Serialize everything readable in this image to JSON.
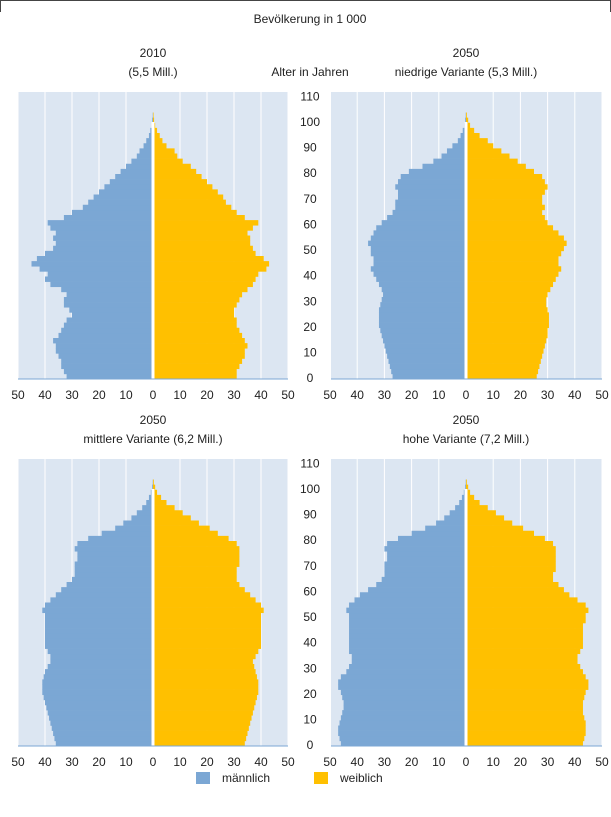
{
  "title": "Bevölkerung in 1 000",
  "chart_data": [
    {
      "type": "pyramid",
      "title": "2010",
      "subtitle": "(5,5 Mill.)",
      "categories": [
        0,
        2,
        4,
        6,
        8,
        10,
        12,
        14,
        16,
        18,
        20,
        22,
        24,
        26,
        28,
        30,
        32,
        34,
        36,
        38,
        40,
        42,
        44,
        46,
        48,
        50,
        52,
        54,
        56,
        58,
        60,
        62,
        64,
        66,
        68,
        70,
        72,
        74,
        76,
        78,
        80,
        82,
        84,
        86,
        88,
        90,
        92,
        94,
        96,
        98,
        100,
        102,
        104
      ],
      "ylim": [
        0,
        112
      ],
      "xlim": [
        0,
        50
      ],
      "xticks": [
        0,
        10,
        20,
        30,
        40,
        50
      ],
      "grid": true,
      "series": [
        {
          "name": "männlich",
          "color": "#7ba7d4",
          "side": "left",
          "values": [
            32,
            33,
            34,
            34,
            35,
            36,
            36,
            37,
            35,
            34,
            33,
            32,
            30,
            31,
            33,
            33,
            32,
            34,
            38,
            40,
            39,
            42,
            45,
            43,
            40,
            37,
            36,
            37,
            36,
            38,
            39,
            33,
            30,
            26,
            24,
            22,
            20,
            18,
            16,
            14,
            12,
            10,
            8,
            6,
            5,
            3.5,
            2.5,
            1.5,
            1,
            0.5,
            0.3,
            0.1,
            0
          ]
        },
        {
          "name": "weiblich",
          "color": "#ffc000",
          "side": "right",
          "values": [
            31,
            31,
            32,
            33,
            34,
            34,
            35,
            34,
            33,
            32,
            31,
            31,
            30,
            30,
            31,
            32,
            33,
            35,
            37,
            38,
            39,
            42,
            43,
            41,
            38,
            37,
            36,
            36,
            35,
            37,
            39,
            34,
            31,
            29,
            27,
            26,
            24,
            22,
            20,
            18,
            16,
            14,
            11,
            9,
            8,
            5,
            3.5,
            2.5,
            1.5,
            0.8,
            0.4,
            0.2,
            0
          ]
        }
      ]
    },
    {
      "type": "pyramid",
      "title": "2050",
      "subtitle": "niedrige Variante (5,3 Mill.)",
      "ylabel": "Alter in Jahren",
      "categories": [
        0,
        2,
        4,
        6,
        8,
        10,
        12,
        14,
        16,
        18,
        20,
        22,
        24,
        26,
        28,
        30,
        32,
        34,
        36,
        38,
        40,
        42,
        44,
        46,
        48,
        50,
        52,
        54,
        56,
        58,
        60,
        62,
        64,
        66,
        68,
        70,
        72,
        74,
        76,
        78,
        80,
        82,
        84,
        86,
        88,
        90,
        92,
        94,
        96,
        98,
        100,
        102,
        104
      ],
      "ylim": [
        0,
        112
      ],
      "yticks": [
        0,
        10,
        20,
        30,
        40,
        50,
        60,
        70,
        80,
        90,
        100,
        110
      ],
      "xlim": [
        0,
        50
      ],
      "xticks": [
        0,
        10,
        20,
        30,
        40,
        50
      ],
      "grid": true,
      "series": [
        {
          "name": "männlich",
          "color": "#7ba7d4",
          "side": "left",
          "values": [
            27,
            27.5,
            28,
            28.5,
            29,
            29.5,
            30,
            30.5,
            31,
            31.5,
            32,
            32,
            32,
            32,
            31.5,
            31,
            30.5,
            31,
            32,
            33,
            34,
            35,
            34,
            34,
            35,
            35,
            36,
            35,
            34,
            33,
            31,
            29,
            27,
            26,
            26,
            25,
            25,
            26,
            25,
            24,
            21,
            16,
            12,
            9,
            7,
            5,
            3,
            2,
            1.2,
            0.6,
            0.3,
            0.1,
            0
          ]
        },
        {
          "name": "weiblich",
          "color": "#ffc000",
          "side": "right",
          "values": [
            26,
            26.5,
            27,
            27.5,
            28,
            28.5,
            29,
            29.5,
            30,
            30,
            30.5,
            30.5,
            30.5,
            30,
            29.5,
            29.5,
            30,
            31,
            32,
            33,
            34,
            35,
            34,
            34,
            35,
            36,
            37,
            36,
            34,
            32,
            30,
            29,
            28,
            29,
            28,
            28,
            29,
            30,
            29,
            28,
            25,
            22,
            19,
            16,
            13,
            10,
            8,
            5,
            3,
            1.5,
            0.8,
            0.3,
            0
          ]
        }
      ]
    },
    {
      "type": "pyramid",
      "title": "2050",
      "subtitle": "mittlere Variante (6,2 Mill.)",
      "categories": [
        0,
        2,
        4,
        6,
        8,
        10,
        12,
        14,
        16,
        18,
        20,
        22,
        24,
        26,
        28,
        30,
        32,
        34,
        36,
        38,
        40,
        42,
        44,
        46,
        48,
        50,
        52,
        54,
        56,
        58,
        60,
        62,
        64,
        66,
        68,
        70,
        72,
        74,
        76,
        78,
        80,
        82,
        84,
        86,
        88,
        90,
        92,
        94,
        96,
        98,
        100,
        102,
        104
      ],
      "ylim": [
        0,
        112
      ],
      "xlim": [
        0,
        50
      ],
      "xticks": [
        0,
        10,
        20,
        30,
        40,
        50
      ],
      "grid": true,
      "series": [
        {
          "name": "männlich",
          "color": "#7ba7d4",
          "side": "left",
          "values": [
            36,
            36.5,
            37,
            37.5,
            38,
            38.5,
            39,
            39.5,
            40,
            40.5,
            41,
            41,
            41,
            40.5,
            40,
            39,
            38,
            38,
            39,
            40,
            40,
            40,
            40,
            40,
            40,
            40,
            41,
            40,
            38,
            36,
            34,
            32,
            30,
            29,
            29,
            29,
            28,
            28,
            29,
            28,
            24,
            19,
            14,
            11,
            8,
            6,
            4,
            2.5,
            1.5,
            0.8,
            0.3,
            0.1,
            0
          ]
        },
        {
          "name": "weiblich",
          "color": "#ffc000",
          "side": "right",
          "values": [
            34,
            34.5,
            35,
            35.5,
            36,
            36.5,
            37,
            37.5,
            38,
            38.5,
            39,
            39,
            39,
            38.5,
            38,
            37.5,
            37,
            38,
            39,
            40,
            40,
            40,
            40,
            40,
            40,
            40,
            41,
            40,
            38,
            36,
            34,
            32,
            31,
            31,
            31,
            32,
            32,
            32,
            32,
            31,
            28,
            24,
            21,
            17,
            14,
            11,
            8,
            5,
            3,
            1.5,
            0.8,
            0.3,
            0
          ]
        }
      ]
    },
    {
      "type": "pyramid",
      "title": "2050",
      "subtitle": "hohe Variante (7,2 Mill.)",
      "categories": [
        0,
        2,
        4,
        6,
        8,
        10,
        12,
        14,
        16,
        18,
        20,
        22,
        24,
        26,
        28,
        30,
        32,
        34,
        36,
        38,
        40,
        42,
        44,
        46,
        48,
        50,
        52,
        54,
        56,
        58,
        60,
        62,
        64,
        66,
        68,
        70,
        72,
        74,
        76,
        78,
        80,
        82,
        84,
        86,
        88,
        90,
        92,
        94,
        96,
        98,
        100,
        102,
        104
      ],
      "ylim": [
        0,
        112
      ],
      "yticks": [
        0,
        10,
        20,
        30,
        40,
        50,
        60,
        70,
        80,
        90,
        100,
        110
      ],
      "xlim": [
        0,
        50
      ],
      "xticks": [
        0,
        10,
        20,
        30,
        40,
        50
      ],
      "grid": true,
      "series": [
        {
          "name": "männlich",
          "color": "#7ba7d4",
          "side": "left",
          "values": [
            46,
            46.5,
            47,
            47,
            46.5,
            46,
            45.5,
            45,
            45,
            45.5,
            46,
            47,
            47,
            46,
            44,
            43,
            42,
            42,
            43,
            43,
            43,
            43,
            43,
            43,
            43,
            43,
            44,
            43,
            41,
            39,
            36,
            33,
            31,
            30,
            30,
            30,
            29,
            29,
            30,
            29,
            25,
            20,
            15,
            11,
            8,
            6,
            4,
            2.5,
            1.5,
            0.8,
            0.3,
            0.1,
            0
          ]
        },
        {
          "name": "weiblich",
          "color": "#ffc000",
          "side": "right",
          "values": [
            43,
            43.5,
            44,
            44,
            44,
            43.5,
            43,
            43,
            43,
            43.5,
            44,
            45,
            45,
            44,
            43,
            42,
            41,
            41,
            42,
            43,
            43,
            43,
            43,
            43,
            44,
            44,
            45,
            44,
            41,
            38,
            36,
            34,
            32,
            32,
            33,
            33,
            33,
            33,
            33,
            32,
            29,
            25,
            21,
            17,
            14,
            11,
            8,
            5,
            3,
            1.5,
            0.8,
            0.3,
            0
          ]
        }
      ]
    }
  ]
}
